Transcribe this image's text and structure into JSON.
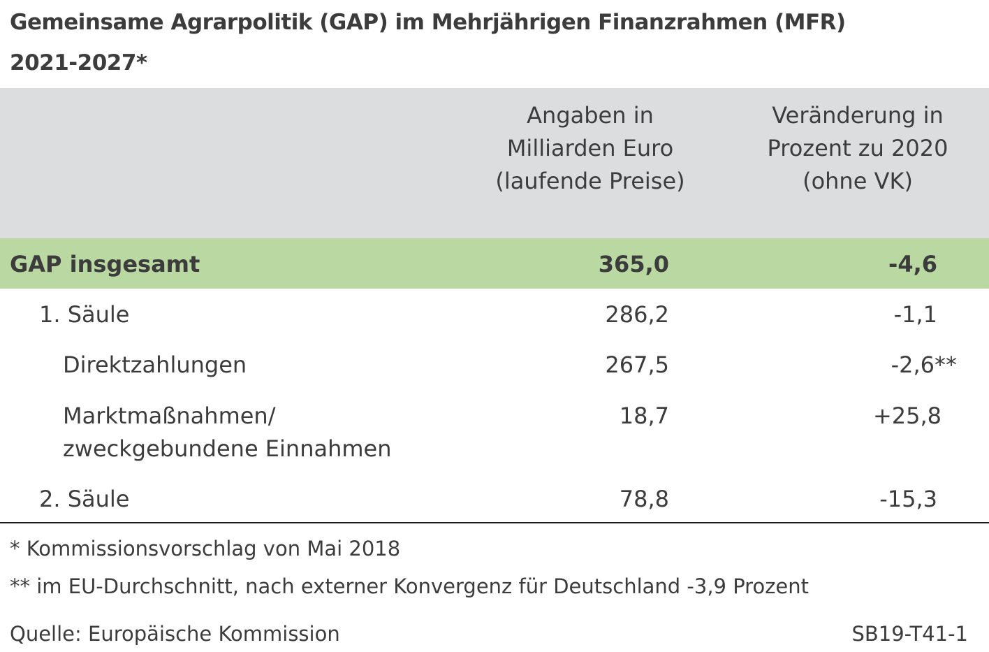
{
  "title": {
    "line1": "Gemeinsame Agrarpolitik (GAP) im Mehrjährigen Finanzrahmen (MFR)",
    "line2": "2021-2027*"
  },
  "table": {
    "headers": {
      "col1": "Angaben in Milliarden Euro (laufende Preise)",
      "col2": "Veränderung in Prozent zu 2020 (ohne VK)"
    },
    "rows": [
      {
        "label": "GAP insgesamt",
        "value": "365,0",
        "change": "-4,6"
      },
      {
        "label": "1. Säule",
        "value": "286,2",
        "change": "-1,1"
      },
      {
        "label": "Direktzahlungen",
        "value": "267,5",
        "change": "-2,6**"
      },
      {
        "label": "Marktmaßnahmen/ zweckgebundene Einnahmen",
        "label_line1": "Marktmaßnahmen/",
        "label_line2": "zweckgebundene Einnahmen",
        "value": "18,7",
        "change": "+25,8"
      },
      {
        "label": "2. Säule",
        "value": "78,8",
        "change": "-15,3"
      }
    ]
  },
  "footnotes": {
    "note1": "* Kommissionsvorschlag von Mai 2018",
    "note2": "** im EU-Durchschnitt, nach externer Konvergenz für Deutschland -3,9 Prozent",
    "source": "Quelle: Europäische Kommission",
    "code": "SB19-T41-1"
  },
  "colors": {
    "header_band": "#dcdddf",
    "total_row": "#bad9a2",
    "text": "#3c3c3c"
  }
}
